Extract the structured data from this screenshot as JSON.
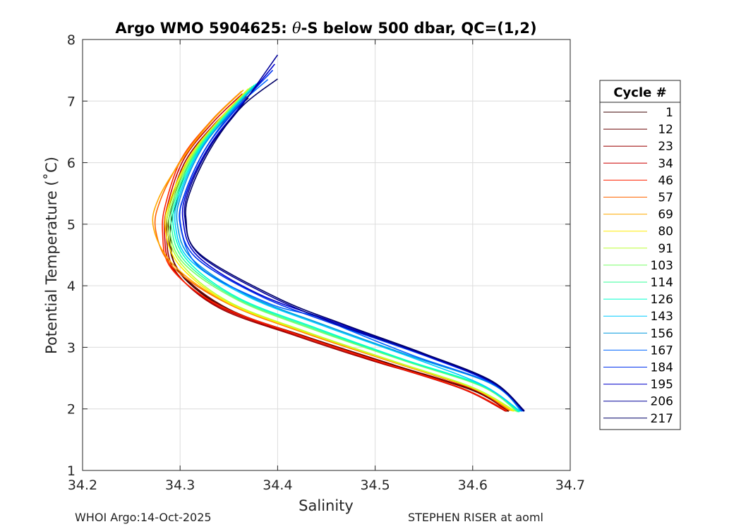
{
  "chart_data": {
    "type": "line",
    "title_prefix": "Argo WMO 5904625: ",
    "title_theta": "θ",
    "title_suffix": "-S below 500 dbar,  QC=(1,2)",
    "xlabel": "Salinity",
    "ylabel": "Potential Temperature (˚C)",
    "xlim": [
      34.2,
      34.7
    ],
    "ylim": [
      1,
      8
    ],
    "xticks": [
      "34.2",
      "34.3",
      "34.4",
      "34.5",
      "34.6",
      "34.7"
    ],
    "yticks": [
      "1",
      "2",
      "3",
      "4",
      "5",
      "6",
      "7",
      "8"
    ],
    "grid": true,
    "legend_title": "Cycle #",
    "legend_position": "right",
    "legend": [
      {
        "label": "1",
        "color": "#3d0000"
      },
      {
        "label": "12",
        "color": "#6a0000"
      },
      {
        "label": "23",
        "color": "#9a0000"
      },
      {
        "label": "34",
        "color": "#cc0000"
      },
      {
        "label": "46",
        "color": "#ff2200"
      },
      {
        "label": "57",
        "color": "#ff6600"
      },
      {
        "label": "69",
        "color": "#ffaa00"
      },
      {
        "label": "80",
        "color": "#ffee00"
      },
      {
        "label": "91",
        "color": "#bbff33"
      },
      {
        "label": "103",
        "color": "#77ff66"
      },
      {
        "label": "114",
        "color": "#33ff99"
      },
      {
        "label": "126",
        "color": "#00ffcc"
      },
      {
        "label": "143",
        "color": "#00ccff"
      },
      {
        "label": "156",
        "color": "#0099dd"
      },
      {
        "label": "167",
        "color": "#0066ff"
      },
      {
        "label": "184",
        "color": "#0033ee"
      },
      {
        "label": "195",
        "color": "#0000cc"
      },
      {
        "label": "206",
        "color": "#000099"
      },
      {
        "label": "217",
        "color": "#000066"
      }
    ],
    "series": [
      {
        "name": "1",
        "color": "#3d0000",
        "points": [
          [
            34.637,
            1.96
          ],
          [
            34.6,
            2.3
          ],
          [
            34.52,
            2.7
          ],
          [
            34.43,
            3.15
          ],
          [
            34.35,
            3.6
          ],
          [
            34.3,
            4.2
          ],
          [
            34.29,
            4.8
          ],
          [
            34.295,
            5.3
          ],
          [
            34.31,
            6.0
          ],
          [
            34.34,
            6.6
          ],
          [
            34.37,
            7.05
          ]
        ]
      },
      {
        "name": "12",
        "color": "#6a0000",
        "points": [
          [
            34.636,
            1.96
          ],
          [
            34.6,
            2.31
          ],
          [
            34.52,
            2.71
          ],
          [
            34.43,
            3.17
          ],
          [
            34.35,
            3.62
          ],
          [
            34.3,
            4.22
          ],
          [
            34.288,
            4.82
          ],
          [
            34.292,
            5.32
          ],
          [
            34.308,
            6.02
          ],
          [
            34.338,
            6.62
          ],
          [
            34.368,
            7.08
          ]
        ]
      },
      {
        "name": "23",
        "color": "#9a0000",
        "points": [
          [
            34.635,
            1.96
          ],
          [
            34.6,
            2.32
          ],
          [
            34.51,
            2.72
          ],
          [
            34.42,
            3.18
          ],
          [
            34.34,
            3.64
          ],
          [
            34.295,
            4.24
          ],
          [
            34.286,
            4.84
          ],
          [
            34.29,
            5.34
          ],
          [
            34.306,
            6.04
          ],
          [
            34.336,
            6.64
          ],
          [
            34.366,
            7.1
          ]
        ]
      },
      {
        "name": "34",
        "color": "#cc0000",
        "points": [
          [
            34.634,
            1.96
          ],
          [
            34.59,
            2.32
          ],
          [
            34.51,
            2.73
          ],
          [
            34.42,
            3.2
          ],
          [
            34.34,
            3.66
          ],
          [
            34.293,
            4.26
          ],
          [
            34.284,
            4.86
          ],
          [
            34.288,
            5.36
          ],
          [
            34.304,
            6.06
          ],
          [
            34.334,
            6.66
          ],
          [
            34.364,
            7.12
          ]
        ]
      },
      {
        "name": "46",
        "color": "#ff2200",
        "points": [
          [
            34.635,
            1.97
          ],
          [
            34.59,
            2.33
          ],
          [
            34.51,
            2.74
          ],
          [
            34.42,
            3.21
          ],
          [
            34.34,
            3.68
          ],
          [
            34.291,
            4.28
          ],
          [
            34.282,
            4.88
          ],
          [
            34.286,
            5.38
          ],
          [
            34.302,
            6.08
          ],
          [
            34.332,
            6.68
          ],
          [
            34.362,
            7.14
          ]
        ]
      },
      {
        "name": "57",
        "color": "#ff6600",
        "points": [
          [
            34.638,
            1.97
          ],
          [
            34.6,
            2.33
          ],
          [
            34.52,
            2.75
          ],
          [
            34.43,
            3.22
          ],
          [
            34.35,
            3.7
          ],
          [
            34.293,
            4.3
          ],
          [
            34.275,
            4.9
          ],
          [
            34.28,
            5.4
          ],
          [
            34.303,
            6.1
          ],
          [
            34.333,
            6.7
          ],
          [
            34.363,
            7.16
          ]
        ]
      },
      {
        "name": "69",
        "color": "#ffaa00",
        "points": [
          [
            34.64,
            1.97
          ],
          [
            34.6,
            2.34
          ],
          [
            34.52,
            2.76
          ],
          [
            34.43,
            3.23
          ],
          [
            34.35,
            3.71
          ],
          [
            34.295,
            4.31
          ],
          [
            34.273,
            4.92
          ],
          [
            34.278,
            5.42
          ],
          [
            34.305,
            6.12
          ],
          [
            34.335,
            6.72
          ],
          [
            34.365,
            7.18
          ]
        ]
      },
      {
        "name": "80",
        "color": "#ffee00",
        "points": [
          [
            34.642,
            1.96
          ],
          [
            34.6,
            2.34
          ],
          [
            34.52,
            2.76
          ],
          [
            34.43,
            3.24
          ],
          [
            34.35,
            3.72
          ],
          [
            34.3,
            4.32
          ],
          [
            34.285,
            4.9
          ],
          [
            34.29,
            5.4
          ],
          [
            34.31,
            6.1
          ],
          [
            34.34,
            6.7
          ],
          [
            34.37,
            7.2
          ]
        ]
      },
      {
        "name": "91",
        "color": "#bbff33",
        "points": [
          [
            34.644,
            1.96
          ],
          [
            34.6,
            2.35
          ],
          [
            34.52,
            2.77
          ],
          [
            34.43,
            3.25
          ],
          [
            34.35,
            3.74
          ],
          [
            34.302,
            4.34
          ],
          [
            34.287,
            4.92
          ],
          [
            34.292,
            5.42
          ],
          [
            34.312,
            6.12
          ],
          [
            34.342,
            6.72
          ],
          [
            34.372,
            7.22
          ]
        ]
      },
      {
        "name": "103",
        "color": "#77ff66",
        "points": [
          [
            34.646,
            1.95
          ],
          [
            34.61,
            2.36
          ],
          [
            34.53,
            2.78
          ],
          [
            34.44,
            3.27
          ],
          [
            34.36,
            3.76
          ],
          [
            34.304,
            4.36
          ],
          [
            34.289,
            4.94
          ],
          [
            34.294,
            5.44
          ],
          [
            34.314,
            6.14
          ],
          [
            34.344,
            6.74
          ],
          [
            34.374,
            7.24
          ]
        ]
      },
      {
        "name": "114",
        "color": "#33ff99",
        "points": [
          [
            34.647,
            1.95
          ],
          [
            34.61,
            2.37
          ],
          [
            34.53,
            2.79
          ],
          [
            34.44,
            3.29
          ],
          [
            34.36,
            3.78
          ],
          [
            34.306,
            4.38
          ],
          [
            34.291,
            4.96
          ],
          [
            34.296,
            5.46
          ],
          [
            34.316,
            6.16
          ],
          [
            34.346,
            6.76
          ],
          [
            34.376,
            7.26
          ]
        ]
      },
      {
        "name": "126",
        "color": "#00ffcc",
        "points": [
          [
            34.648,
            1.95
          ],
          [
            34.61,
            2.38
          ],
          [
            34.53,
            2.8
          ],
          [
            34.44,
            3.31
          ],
          [
            34.36,
            3.8
          ],
          [
            34.308,
            4.4
          ],
          [
            34.293,
            4.98
          ],
          [
            34.298,
            5.48
          ],
          [
            34.318,
            6.18
          ],
          [
            34.348,
            6.78
          ],
          [
            34.378,
            7.28
          ]
        ]
      },
      {
        "name": "143",
        "color": "#00ccff",
        "points": [
          [
            34.649,
            1.96
          ],
          [
            34.61,
            2.39
          ],
          [
            34.54,
            2.82
          ],
          [
            34.45,
            3.33
          ],
          [
            34.37,
            3.82
          ],
          [
            34.31,
            4.42
          ],
          [
            34.295,
            5.0
          ],
          [
            34.3,
            5.5
          ],
          [
            34.32,
            6.2
          ],
          [
            34.35,
            6.8
          ],
          [
            34.38,
            7.3
          ]
        ]
      },
      {
        "name": "156",
        "color": "#0099dd",
        "points": [
          [
            34.65,
            1.96
          ],
          [
            34.62,
            2.4
          ],
          [
            34.54,
            2.84
          ],
          [
            34.45,
            3.35
          ],
          [
            34.37,
            3.84
          ],
          [
            34.312,
            4.44
          ],
          [
            34.297,
            5.02
          ],
          [
            34.302,
            5.52
          ],
          [
            34.322,
            6.22
          ],
          [
            34.352,
            6.82
          ],
          [
            34.382,
            7.32
          ]
        ]
      },
      {
        "name": "167",
        "color": "#0066ff",
        "points": [
          [
            34.651,
            1.96
          ],
          [
            34.62,
            2.41
          ],
          [
            34.54,
            2.86
          ],
          [
            34.47,
            3.3
          ],
          [
            34.44,
            3.5
          ],
          [
            34.39,
            3.72
          ],
          [
            34.32,
            4.3
          ],
          [
            34.3,
            5.0
          ],
          [
            34.305,
            5.5
          ],
          [
            34.325,
            6.2
          ],
          [
            34.355,
            6.85
          ],
          [
            34.39,
            7.35
          ]
        ]
      },
      {
        "name": "184",
        "color": "#0033ee",
        "points": [
          [
            34.652,
            1.96
          ],
          [
            34.62,
            2.42
          ],
          [
            34.55,
            2.87
          ],
          [
            34.45,
            3.42
          ],
          [
            34.38,
            3.85
          ],
          [
            34.316,
            4.46
          ],
          [
            34.3,
            5.05
          ],
          [
            34.306,
            5.55
          ],
          [
            34.327,
            6.25
          ],
          [
            34.357,
            6.86
          ],
          [
            34.395,
            7.5
          ]
        ]
      },
      {
        "name": "195",
        "color": "#0000cc",
        "points": [
          [
            34.652,
            1.97
          ],
          [
            34.62,
            2.43
          ],
          [
            34.55,
            2.88
          ],
          [
            34.46,
            3.4
          ],
          [
            34.38,
            3.87
          ],
          [
            34.318,
            4.48
          ],
          [
            34.303,
            5.07
          ],
          [
            34.308,
            5.57
          ],
          [
            34.33,
            6.27
          ],
          [
            34.36,
            6.88
          ],
          [
            34.397,
            7.6
          ]
        ]
      },
      {
        "name": "206",
        "color": "#000099",
        "points": [
          [
            34.653,
            1.97
          ],
          [
            34.62,
            2.44
          ],
          [
            34.55,
            2.89
          ],
          [
            34.46,
            3.38
          ],
          [
            34.39,
            3.85
          ],
          [
            34.32,
            4.5
          ],
          [
            34.305,
            5.09
          ],
          [
            34.31,
            5.59
          ],
          [
            34.332,
            6.29
          ],
          [
            34.362,
            6.9
          ],
          [
            34.4,
            7.75
          ]
        ]
      },
      {
        "name": "217",
        "color": "#000066",
        "points": [
          [
            34.653,
            1.96
          ],
          [
            34.62,
            2.45
          ],
          [
            34.55,
            2.9
          ],
          [
            34.47,
            3.36
          ],
          [
            34.4,
            3.8
          ],
          [
            34.32,
            4.52
          ],
          [
            34.306,
            5.1
          ],
          [
            34.312,
            5.6
          ],
          [
            34.334,
            6.3
          ],
          [
            34.364,
            6.92
          ],
          [
            34.4,
            7.36
          ]
        ]
      }
    ]
  },
  "footer": {
    "left": "WHOI Argo:14-Oct-2025",
    "right": "STEPHEN RISER at aoml"
  }
}
